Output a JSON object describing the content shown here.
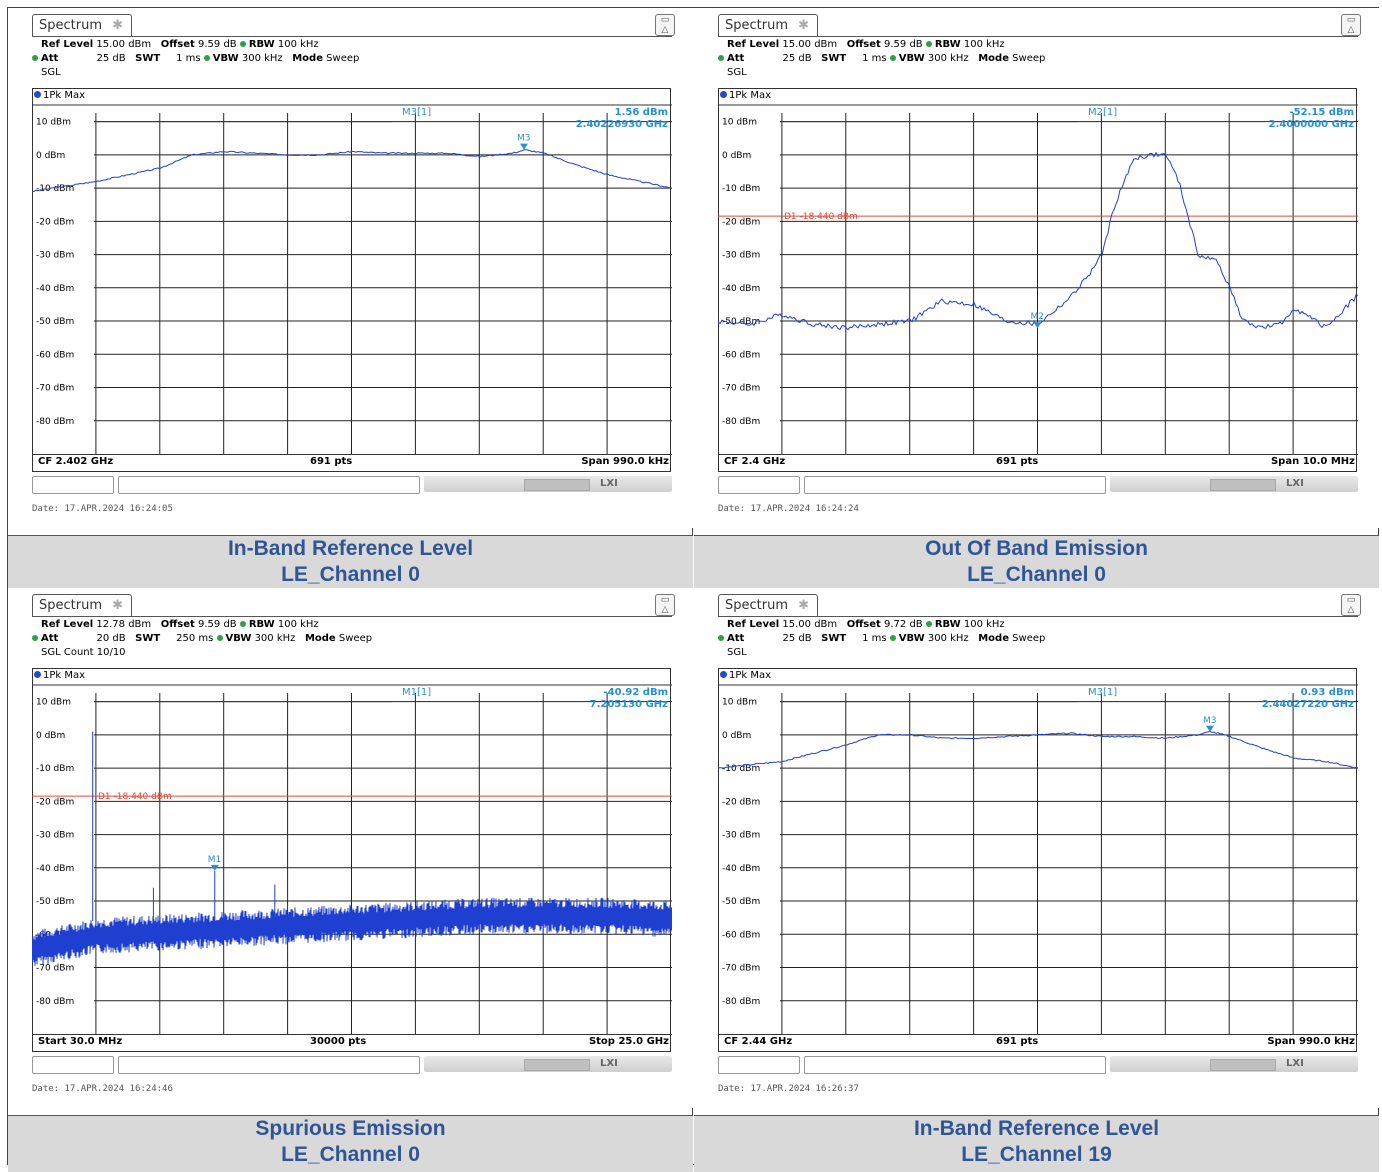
{
  "colors": {
    "trace": "#1f3fd0",
    "marker": "#2a8fd0",
    "limit": "#e04a3a",
    "grid": "#222222",
    "caption_text": "#2f5597",
    "caption_bg": "#d9d9d9"
  },
  "panels": [
    {
      "tab": "Spectrum",
      "settings": {
        "ref_level": "15.00 dBm",
        "offset": "9.59 dB",
        "rbw": "100 kHz",
        "att": "25 dB",
        "swt": "1 ms",
        "vbw": "300 kHz",
        "mode": "Sweep",
        "sgl": "SGL"
      },
      "trace_label": "1Pk Max",
      "marker_name": "M3[1]",
      "marker_level": "1.56 dBm",
      "marker_freq": "2.40226930 GHz",
      "marker_tag": "M3",
      "footer_left": "CF 2.402 GHz",
      "footer_mid": "691 pts",
      "footer_right": "Span 990.0 kHz",
      "date": "Date: 17.APR.2024  16:24:05",
      "caption_line1": "In-Band Reference Level",
      "caption_line2": "LE_Channel 0"
    },
    {
      "tab": "Spectrum",
      "settings": {
        "ref_level": "15.00 dBm",
        "offset": "9.59 dB",
        "rbw": "100 kHz",
        "att": "25 dB",
        "swt": "1 ms",
        "vbw": "300 kHz",
        "mode": "Sweep",
        "sgl": "SGL"
      },
      "trace_label": "1Pk Max",
      "marker_name": "M2[1]",
      "marker_level": "-52.15 dBm",
      "marker_freq": "2.4000000 GHz",
      "marker_tag": "M2",
      "limit_label": "D1  -18.440 dBm",
      "footer_left": "CF 2.4 GHz",
      "footer_mid": "691 pts",
      "footer_right": "Span 10.0 MHz",
      "date": "Date: 17.APR.2024  16:24:24",
      "caption_line1": "Out Of Band Emission",
      "caption_line2": "LE_Channel 0"
    },
    {
      "tab": "Spectrum",
      "settings": {
        "ref_level": "12.78 dBm",
        "offset": "9.59 dB",
        "rbw": "100 kHz",
        "att": "20 dB",
        "swt": "250 ms",
        "vbw": "300 kHz",
        "mode": "Sweep",
        "sgl": "SGL Count 10/10"
      },
      "trace_label": "1Pk Max",
      "marker_name": "M1[1]",
      "marker_level": "-40.92 dBm",
      "marker_freq": "7.205130 GHz",
      "marker_tag": "M1",
      "limit_label": "D1  -18.440 dBm",
      "footer_left": "Start 30.0 MHz",
      "footer_mid": "30000 pts",
      "footer_right": "Stop 25.0 GHz",
      "date": "Date: 17.APR.2024  16:24:46",
      "caption_line1": "Spurious Emission",
      "caption_line2": "LE_Channel 0"
    },
    {
      "tab": "Spectrum",
      "settings": {
        "ref_level": "15.00 dBm",
        "offset": "9.72 dB",
        "rbw": "100 kHz",
        "att": "25 dB",
        "swt": "1 ms",
        "vbw": "300 kHz",
        "mode": "Sweep",
        "sgl": "SGL"
      },
      "trace_label": "1Pk Max",
      "marker_name": "M3[1]",
      "marker_level": "0.93 dBm",
      "marker_freq": "2.44027220 GHz",
      "marker_tag": "M3",
      "footer_left": "CF 2.44 GHz",
      "footer_mid": "691 pts",
      "footer_right": "Span 990.0 kHz",
      "date": "Date: 17.APR.2024  16:26:37",
      "caption_line1": "In-Band Reference Level",
      "caption_line2": "LE_Channel 19"
    }
  ],
  "chart_data": [
    {
      "type": "line",
      "title": "In-Band Reference Level LE_Channel 0",
      "xlabel": "",
      "ylabel": "",
      "ylim": [
        -90,
        10
      ],
      "yticks": [
        "10 dBm",
        "0 dBm",
        "-10 dBm",
        "-20 dBm",
        "-30 dBm",
        "-40 dBm",
        "-50 dBm",
        "-60 dBm",
        "-70 dBm",
        "-80 dBm"
      ],
      "x_fraction": [
        0,
        0.1,
        0.2,
        0.25,
        0.3,
        0.35,
        0.4,
        0.45,
        0.5,
        0.55,
        0.6,
        0.65,
        0.7,
        0.75,
        0.77,
        0.8,
        0.85,
        0.9,
        0.95,
        1.0
      ],
      "series": [
        {
          "values": [
            -11,
            -8,
            -4,
            0,
            1,
            0.5,
            0,
            0,
            1,
            0.5,
            0.5,
            0.5,
            -0.5,
            0.5,
            1.5,
            0.5,
            -3,
            -6,
            -8,
            -10
          ]
        }
      ],
      "markers": [
        {
          "name": "M3",
          "x_fraction": 0.77,
          "level": 1.56
        }
      ],
      "grid": true
    },
    {
      "type": "line",
      "title": "Out Of Band Emission LE_Channel 0",
      "xlabel": "",
      "ylabel": "",
      "ylim": [
        -90,
        10
      ],
      "yticks": [
        "10 dBm",
        "0 dBm",
        "-10 dBm",
        "-20 dBm",
        "-30 dBm",
        "-40 dBm",
        "-50 dBm",
        "-60 dBm",
        "-70 dBm",
        "-80 dBm"
      ],
      "x_fraction": [
        0,
        0.05,
        0.1,
        0.15,
        0.2,
        0.25,
        0.3,
        0.35,
        0.4,
        0.45,
        0.5,
        0.55,
        0.58,
        0.6,
        0.62,
        0.65,
        0.68,
        0.7,
        0.72,
        0.75,
        0.78,
        0.8,
        0.82,
        0.85,
        0.88,
        0.9,
        0.95,
        1.0
      ],
      "series": [
        {
          "values": [
            -50,
            -51,
            -48,
            -51,
            -52,
            -51,
            -50,
            -44,
            -45,
            -50,
            -51,
            -43,
            -36,
            -30,
            -15,
            -1,
            0,
            0,
            -8,
            -30,
            -32,
            -40,
            -50,
            -52,
            -51,
            -46,
            -52,
            -42
          ]
        }
      ],
      "limit_line": -18.44,
      "markers": [
        {
          "name": "M2",
          "x_fraction": 0.5,
          "level": -52.15
        }
      ],
      "grid": true
    },
    {
      "type": "line",
      "title": "Spurious Emission LE_Channel 0",
      "xlabel": "",
      "ylabel": "",
      "ylim": [
        -90,
        10
      ],
      "yticks": [
        "10 dBm",
        "0 dBm",
        "-10 dBm",
        "-20 dBm",
        "-30 dBm",
        "-40 dBm",
        "-50 dBm",
        "-60 dBm",
        "-70 dBm",
        "-80 dBm"
      ],
      "x_fraction": [
        0,
        0.1,
        0.2,
        0.3,
        0.4,
        0.5,
        0.6,
        0.7,
        0.8,
        0.9,
        1.0
      ],
      "series": [
        {
          "values": [
            -64,
            -60,
            -59,
            -58,
            -57,
            -56,
            -55,
            -54,
            -54,
            -54,
            -55
          ]
        }
      ],
      "spikes": [
        {
          "x_fraction": 0.095,
          "level": 1
        },
        {
          "x_fraction": 0.19,
          "level": -46
        },
        {
          "x_fraction": 0.286,
          "level": -40.92
        },
        {
          "x_fraction": 0.38,
          "level": -45
        }
      ],
      "limit_line": -18.44,
      "markers": [
        {
          "name": "M1",
          "x_fraction": 0.286,
          "level": -40.92
        }
      ],
      "grid": true
    },
    {
      "type": "line",
      "title": "In-Band Reference Level LE_Channel 19",
      "xlabel": "",
      "ylabel": "",
      "ylim": [
        -90,
        10
      ],
      "yticks": [
        "10 dBm",
        "0 dBm",
        "-10 dBm",
        "-20 dBm",
        "-30 dBm",
        "-40 dBm",
        "-50 dBm",
        "-60 dBm",
        "-70 dBm",
        "-80 dBm"
      ],
      "x_fraction": [
        0,
        0.1,
        0.2,
        0.25,
        0.3,
        0.35,
        0.4,
        0.5,
        0.55,
        0.6,
        0.65,
        0.7,
        0.75,
        0.77,
        0.8,
        0.85,
        0.9,
        0.95,
        1.0
      ],
      "series": [
        {
          "values": [
            -10,
            -8,
            -3,
            0,
            0,
            -1,
            -1,
            0,
            0.5,
            -0.5,
            -0.5,
            -1,
            0,
            1,
            -0.5,
            -4,
            -7,
            -8,
            -10
          ]
        }
      ],
      "markers": [
        {
          "name": "M3",
          "x_fraction": 0.77,
          "level": 0.93
        }
      ],
      "grid": true
    }
  ]
}
